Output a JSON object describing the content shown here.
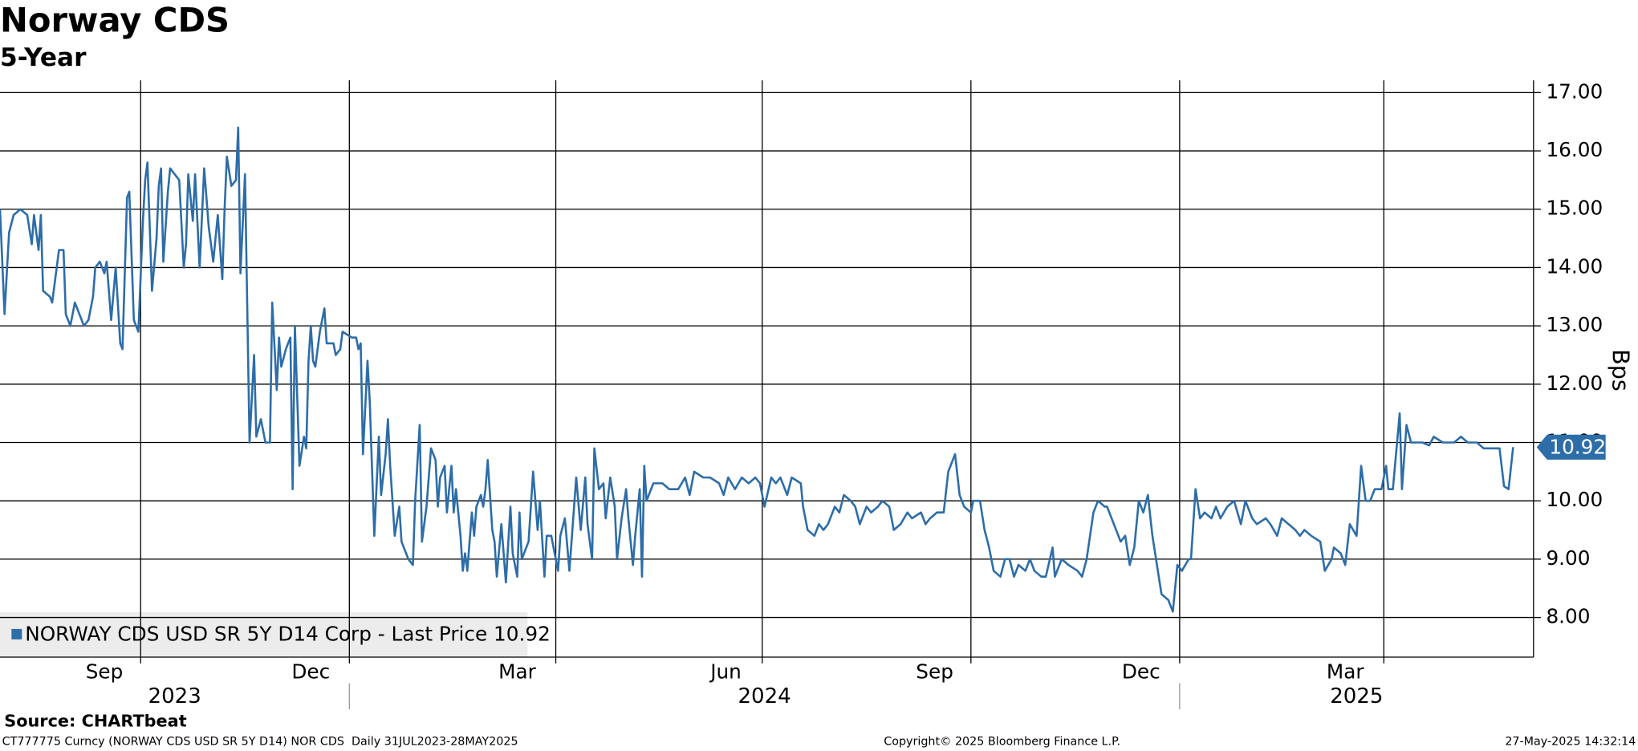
{
  "chart_data": {
    "type": "line",
    "title": "Norway CDS",
    "subtitle": "5-Year",
    "y_label": "Bps",
    "source": "Source: CHARTbeat",
    "xlim": [
      "2023-07-31",
      "2025-06-06"
    ],
    "ylim": [
      7.32,
      17.21
    ],
    "yticks": [
      {
        "value": 8,
        "label": "8.00"
      },
      {
        "value": 9,
        "label": "9.00"
      },
      {
        "value": 10,
        "label": "10.00"
      },
      {
        "value": 11,
        "label": "11.00"
      },
      {
        "value": 12,
        "label": "12.00"
      },
      {
        "value": 13,
        "label": "13.00"
      },
      {
        "value": 14,
        "label": "14.00"
      },
      {
        "value": 15,
        "label": "15.00"
      },
      {
        "value": 16,
        "label": "16.00"
      },
      {
        "value": 17,
        "label": "17.00"
      }
    ],
    "xticks": [
      {
        "value": "2023-09-15",
        "label": "Sep"
      },
      {
        "value": "2023-12-15",
        "label": "Dec"
      },
      {
        "value": "2024-03-15",
        "label": "Mar"
      },
      {
        "value": "2024-06-15",
        "label": "Jun"
      },
      {
        "value": "2024-09-15",
        "label": "Sep"
      },
      {
        "value": "2024-12-15",
        "label": "Dec"
      },
      {
        "value": "2025-03-15",
        "label": "Mar"
      }
    ],
    "xgrid": [
      "2023-10-01",
      "2024-01-01",
      "2024-04-01",
      "2024-07-01",
      "2024-10-01",
      "2025-01-01",
      "2025-04-01"
    ],
    "years": [
      "2023",
      "2024",
      "2025"
    ],
    "grid": true,
    "legend": "bottom-left",
    "series": [
      {
        "name": "NORWAY CDS USD SR 5Y D14 Corp - Last Price 10.92",
        "color": "#2d6da8",
        "x": [
          "2023-07-31",
          "2023-08-02",
          "2023-08-04",
          "2023-08-06",
          "2023-08-09",
          "2023-08-12",
          "2023-08-14",
          "2023-08-15",
          "2023-08-17",
          "2023-08-18",
          "2023-08-19",
          "2023-08-22",
          "2023-08-23",
          "2023-08-26",
          "2023-08-28",
          "2023-08-29",
          "2023-08-31",
          "2023-09-02",
          "2023-09-04",
          "2023-09-06",
          "2023-09-08",
          "2023-09-10",
          "2023-09-11",
          "2023-09-13",
          "2023-09-15",
          "2023-09-16",
          "2023-09-18",
          "2023-09-20",
          "2023-09-22",
          "2023-09-23",
          "2023-09-25",
          "2023-09-26",
          "2023-09-28",
          "2023-09-30",
          "2023-10-02",
          "2023-10-03",
          "2023-10-04",
          "2023-10-06",
          "2023-10-08",
          "2023-10-09",
          "2023-10-10",
          "2023-10-11",
          "2023-10-13",
          "2023-10-14",
          "2023-10-16",
          "2023-10-18",
          "2023-10-20",
          "2023-10-21",
          "2023-10-22",
          "2023-10-24",
          "2023-10-25",
          "2023-10-27",
          "2023-10-29",
          "2023-10-31",
          "2023-11-02",
          "2023-11-04",
          "2023-11-06",
          "2023-11-07",
          "2023-11-08",
          "2023-11-10",
          "2023-11-12",
          "2023-11-13",
          "2023-11-14",
          "2023-11-16",
          "2023-11-18",
          "2023-11-20",
          "2023-11-21",
          "2023-11-23",
          "2023-11-25",
          "2023-11-27",
          "2023-11-28",
          "2023-11-30",
          "2023-12-01",
          "2023-12-02",
          "2023-12-04",
          "2023-12-06",
          "2023-12-07",
          "2023-12-08",
          "2023-12-10",
          "2023-12-12",
          "2023-12-13",
          "2023-12-14",
          "2023-12-15",
          "2023-12-16",
          "2023-12-17",
          "2023-12-19",
          "2023-12-21",
          "2023-12-22",
          "2023-12-25",
          "2023-12-26",
          "2023-12-28",
          "2023-12-29",
          "2024-01-02",
          "2024-01-04",
          "2024-01-05",
          "2024-01-06",
          "2024-01-07",
          "2024-01-09",
          "2024-01-10",
          "2024-01-12",
          "2024-01-14",
          "2024-01-15",
          "2024-01-17",
          "2024-01-18",
          "2024-01-19",
          "2024-01-21",
          "2024-01-23",
          "2024-01-24",
          "2024-01-27",
          "2024-01-29",
          "2024-01-30",
          "2024-02-01",
          "2024-02-02",
          "2024-02-04",
          "2024-02-06",
          "2024-02-08",
          "2024-02-09",
          "2024-02-10",
          "2024-02-12",
          "2024-02-13",
          "2024-02-15",
          "2024-02-16",
          "2024-02-17",
          "2024-02-19",
          "2024-02-20",
          "2024-02-21",
          "2024-02-22",
          "2024-02-24",
          "2024-02-25",
          "2024-02-26",
          "2024-02-28",
          "2024-02-29",
          "2024-03-01",
          "2024-03-02",
          "2024-03-04",
          "2024-03-05",
          "2024-03-06",
          "2024-03-08",
          "2024-03-10",
          "2024-03-12",
          "2024-03-13",
          "2024-03-15",
          "2024-03-16",
          "2024-03-17",
          "2024-03-20",
          "2024-03-22",
          "2024-03-24",
          "2024-03-25",
          "2024-03-27",
          "2024-03-28",
          "2024-03-30",
          "2024-04-02",
          "2024-04-03",
          "2024-04-05",
          "2024-04-07",
          "2024-04-10",
          "2024-04-12",
          "2024-04-14",
          "2024-04-15",
          "2024-04-17",
          "2024-04-18",
          "2024-04-20",
          "2024-04-22",
          "2024-04-23",
          "2024-04-25",
          "2024-04-27",
          "2024-04-28",
          "2024-04-30",
          "2024-05-02",
          "2024-05-03",
          "2024-05-05",
          "2024-05-06",
          "2024-05-08",
          "2024-05-09",
          "2024-05-10",
          "2024-05-11",
          "2024-05-14",
          "2024-05-18",
          "2024-05-21",
          "2024-05-25",
          "2024-05-28",
          "2024-05-30",
          "2024-06-01",
          "2024-06-05",
          "2024-06-08",
          "2024-06-12",
          "2024-06-14",
          "2024-06-16",
          "2024-06-19",
          "2024-06-22",
          "2024-06-25",
          "2024-06-28",
          "2024-06-30",
          "2024-07-02",
          "2024-07-05",
          "2024-07-07",
          "2024-07-09",
          "2024-07-12",
          "2024-07-14",
          "2024-07-18",
          "2024-07-19",
          "2024-07-21",
          "2024-07-24",
          "2024-07-26",
          "2024-07-28",
          "2024-07-30",
          "2024-08-02",
          "2024-08-04",
          "2024-08-06",
          "2024-08-09",
          "2024-08-11",
          "2024-08-13",
          "2024-08-16",
          "2024-08-18",
          "2024-08-21",
          "2024-08-23",
          "2024-08-26",
          "2024-08-28",
          "2024-08-31",
          "2024-09-03",
          "2024-09-05",
          "2024-09-09",
          "2024-09-11",
          "2024-09-13",
          "2024-09-16",
          "2024-09-19",
          "2024-09-21",
          "2024-09-24",
          "2024-09-26",
          "2024-09-28",
          "2024-10-01",
          "2024-10-02",
          "2024-10-05",
          "2024-10-07",
          "2024-10-09",
          "2024-10-11",
          "2024-10-14",
          "2024-10-16",
          "2024-10-18",
          "2024-10-20",
          "2024-10-22",
          "2024-10-25",
          "2024-10-27",
          "2024-10-29",
          "2024-11-01",
          "2024-11-03",
          "2024-11-06",
          "2024-11-07",
          "2024-11-10",
          "2024-11-13",
          "2024-11-17",
          "2024-11-19",
          "2024-11-21",
          "2024-11-24",
          "2024-11-26",
          "2024-11-29",
          "2024-11-30",
          "2024-12-03",
          "2024-12-06",
          "2024-12-08",
          "2024-12-10",
          "2024-12-12",
          "2024-12-14",
          "2024-12-16",
          "2024-12-18",
          "2024-12-20",
          "2024-12-22",
          "2024-12-24",
          "2024-12-27",
          "2024-12-29",
          "2024-12-31",
          "2025-01-02",
          "2025-01-05",
          "2025-01-06",
          "2025-01-08",
          "2025-01-10",
          "2025-01-12",
          "2025-01-15",
          "2025-01-17",
          "2025-01-19",
          "2025-01-22",
          "2025-01-25",
          "2025-01-28",
          "2025-01-30",
          "2025-02-02",
          "2025-02-04",
          "2025-02-08",
          "2025-02-10",
          "2025-02-13",
          "2025-02-15",
          "2025-02-18",
          "2025-02-21",
          "2025-02-23",
          "2025-02-25",
          "2025-02-28",
          "2025-03-04",
          "2025-03-06",
          "2025-03-09",
          "2025-03-10",
          "2025-03-13",
          "2025-03-15",
          "2025-03-17",
          "2025-03-20",
          "2025-03-22",
          "2025-03-24",
          "2025-03-26",
          "2025-03-28",
          "2025-03-31",
          "2025-04-02",
          "2025-04-03",
          "2025-04-05",
          "2025-04-08",
          "2025-04-09",
          "2025-04-11",
          "2025-04-13",
          "2025-04-18",
          "2025-04-21",
          "2025-04-23",
          "2025-04-27",
          "2025-05-02",
          "2025-05-05",
          "2025-05-08",
          "2025-05-12",
          "2025-05-15",
          "2025-05-19",
          "2025-05-22",
          "2025-05-24",
          "2025-05-26",
          "2025-05-28"
        ],
        "values": [
          15.0,
          13.2,
          14.6,
          14.9,
          15.0,
          14.9,
          14.4,
          14.9,
          14.3,
          14.9,
          13.6,
          13.5,
          13.4,
          14.3,
          14.3,
          13.2,
          13.0,
          13.4,
          13.2,
          13.0,
          13.1,
          13.5,
          14.0,
          14.1,
          13.9,
          14.1,
          13.1,
          14.0,
          12.7,
          12.6,
          15.2,
          15.3,
          13.1,
          12.9,
          14.8,
          15.5,
          15.8,
          13.6,
          14.5,
          15.4,
          15.7,
          14.1,
          15.3,
          15.7,
          15.6,
          15.5,
          14.0,
          14.4,
          15.6,
          14.8,
          15.6,
          14.0,
          15.7,
          14.7,
          14.1,
          14.9,
          13.8,
          15.0,
          15.9,
          15.4,
          15.5,
          16.4,
          13.9,
          15.6,
          11.0,
          12.5,
          11.1,
          11.4,
          11.0,
          11.0,
          13.4,
          11.9,
          12.8,
          12.3,
          12.6,
          12.8,
          10.2,
          13.0,
          10.6,
          11.1,
          10.9,
          12.4,
          13.0,
          12.4,
          12.3,
          12.9,
          13.3,
          12.7,
          12.7,
          12.5,
          12.6,
          12.9,
          12.8,
          12.8,
          12.6,
          12.7,
          10.8,
          12.4,
          11.7,
          9.4,
          11.1,
          10.1,
          10.8,
          11.4,
          10.6,
          9.4,
          9.9,
          9.3,
          9.0,
          8.9,
          10.0,
          11.3,
          9.3,
          9.9,
          10.9,
          10.7,
          9.9,
          10.4,
          10.6,
          9.8,
          10.6,
          9.8,
          10.2,
          9.4,
          8.8,
          9.1,
          8.8,
          9.8,
          9.4,
          9.9,
          10.1,
          9.9,
          10.2,
          10.7,
          9.5,
          9.3,
          8.7,
          9.6,
          8.6,
          9.9,
          9.1,
          8.7,
          9.8,
          9.0,
          9.3,
          10.5,
          9.5,
          10.0,
          8.7,
          9.4,
          9.4,
          8.8,
          9.4,
          9.7,
          8.8,
          10.4,
          9.5,
          10.4,
          9.6,
          9.0,
          10.9,
          10.2,
          10.3,
          9.7,
          10.4,
          9.9,
          9.0,
          9.7,
          10.2,
          9.7,
          8.9,
          9.4,
          10.2,
          8.7,
          10.6,
          10.0,
          10.3,
          10.3,
          10.2,
          10.2,
          10.4,
          10.1,
          10.5,
          10.4,
          10.4,
          10.3,
          10.1,
          10.4,
          10.2,
          10.4,
          10.3,
          10.4,
          10.3,
          9.9,
          10.4,
          10.3,
          10.4,
          10.1,
          10.4,
          10.3,
          9.9,
          9.5,
          9.4,
          9.6,
          9.5,
          9.6,
          9.9,
          9.8,
          10.1,
          10.0,
          9.9,
          9.6,
          9.9,
          9.8,
          9.9,
          10.0,
          9.9,
          9.5,
          9.6,
          9.8,
          9.7,
          9.8,
          9.6,
          9.7,
          9.8,
          9.8,
          10.5,
          10.8,
          10.1,
          9.9,
          9.8,
          10.0,
          10.0,
          9.5,
          9.2,
          8.8,
          8.7,
          9.0,
          9.0,
          8.7,
          8.9,
          8.8,
          9.0,
          8.8,
          8.7,
          8.7,
          9.2,
          8.7,
          9.0,
          8.9,
          8.8,
          8.7,
          9.0,
          9.8,
          10.0,
          9.9,
          9.9,
          9.6,
          9.3,
          9.4,
          8.9,
          9.2,
          10.0,
          9.8,
          10.1,
          9.4,
          8.9,
          8.4,
          8.3,
          8.1,
          8.9,
          8.8,
          9.0,
          9.0,
          10.2,
          9.7,
          9.8,
          9.7,
          9.9,
          9.7,
          9.9,
          10.0,
          9.6,
          10.0,
          9.7,
          9.6,
          9.7,
          9.6,
          9.4,
          9.7,
          9.6,
          9.5,
          9.4,
          9.5,
          9.4,
          9.3,
          8.8,
          9.0,
          9.2,
          9.1,
          8.9,
          9.6,
          9.4,
          10.6,
          10.0,
          10.0,
          10.2,
          10.2,
          10.6,
          10.2,
          10.2,
          11.5,
          10.2,
          11.3,
          11.0,
          11.0,
          10.95,
          11.1,
          11.0,
          11.0,
          11.1,
          11.0,
          11.0,
          10.9,
          10.9,
          10.9,
          10.25,
          10.2,
          10.92
        ]
      }
    ]
  },
  "footer": {
    "left": "CT777775 Curncy (NORWAY CDS USD SR 5Y D14) NOR CDS  Daily 31JUL2023-28MAY2025",
    "center": "Copyright© 2025 Bloomberg Finance L.P.",
    "right": "27-May-2025 14:32:14"
  }
}
